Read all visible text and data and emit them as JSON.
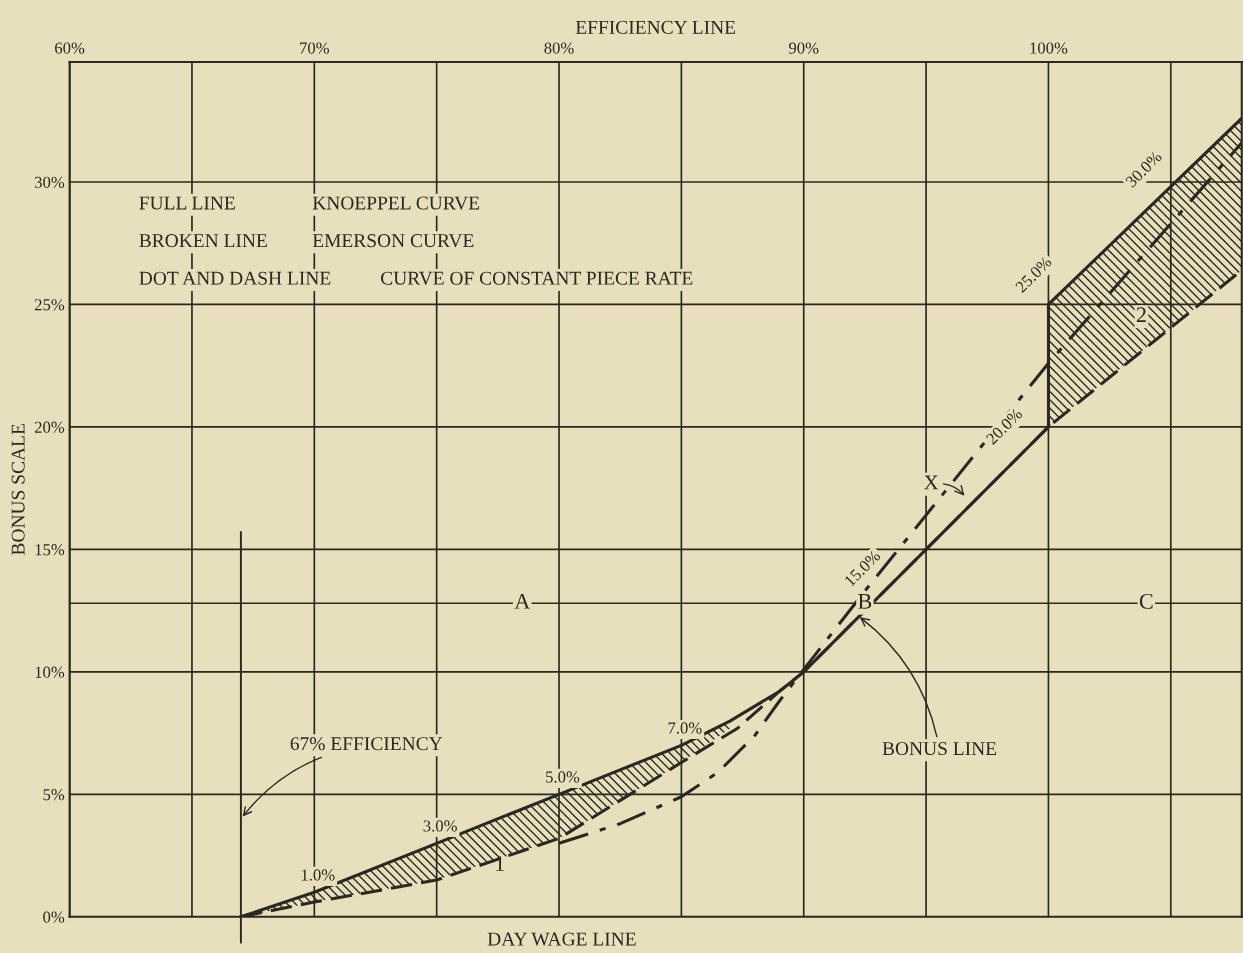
{
  "chart_data": {
    "type": "line",
    "xlabel": "EFFICIENCY LINE",
    "ylabel": "BONUS SCALE",
    "xlim": [
      60,
      107.9
    ],
    "ylim": [
      0,
      34.9
    ],
    "xticks": [
      {
        "value": 60,
        "label": "60%"
      },
      {
        "value": 65,
        "label": null
      },
      {
        "value": 70,
        "label": "70%"
      },
      {
        "value": 75,
        "label": null
      },
      {
        "value": 80,
        "label": "80%"
      },
      {
        "value": 85,
        "label": null
      },
      {
        "value": 90,
        "label": "90%"
      },
      {
        "value": 95,
        "label": null
      },
      {
        "value": 100,
        "label": "100%"
      },
      {
        "value": 105,
        "label": null
      }
    ],
    "yticks": [
      {
        "value": 0,
        "label": "0%"
      },
      {
        "value": 5,
        "label": "5%"
      },
      {
        "value": 10,
        "label": "10%"
      },
      {
        "value": 15,
        "label": "15%"
      },
      {
        "value": 20,
        "label": "20%"
      },
      {
        "value": 25,
        "label": "25%"
      },
      {
        "value": 30,
        "label": "30%"
      }
    ],
    "grid": true,
    "legend": false,
    "marker": "none",
    "series": [
      {
        "color": "#2a2820",
        "line_style": "solid",
        "x": [
          67,
          70,
          75,
          80,
          85,
          87,
          89,
          90,
          95,
          100,
          100,
          107.9
        ],
        "values": [
          0,
          1.0,
          3.0,
          5.0,
          7.0,
          8.0,
          9.2,
          10.0,
          15.0,
          20.0,
          25.0,
          32.6
        ],
        "lower": [
          0,
          0.6,
          1.5,
          3.2,
          6.3,
          7.7,
          null,
          null,
          null,
          20.0,
          20.0,
          26.4
        ],
        "upper": [
          0,
          1.0,
          3.0,
          5.0,
          7.0,
          8.0,
          null,
          null,
          null,
          20.0,
          25.0,
          32.6
        ]
      },
      {
        "color": "#2a2820",
        "line_style": "dashed",
        "x": [
          67,
          70,
          75,
          80,
          85,
          87.3,
          89,
          90,
          100,
          107.9
        ],
        "values": [
          0,
          0.6,
          1.5,
          3.2,
          6.3,
          7.7,
          9.2,
          10.0,
          20.0,
          26.4
        ]
      },
      {
        "color": "#2a2820",
        "line_style": "dashdot",
        "x": [
          80,
          82.5,
          85,
          86.5,
          88,
          89,
          90,
          92.5,
          95,
          100,
          107.9
        ],
        "values": [
          3.0,
          3.8,
          4.9,
          5.9,
          7.4,
          8.8,
          10.1,
          13.3,
          16.4,
          22.6,
          31.6
        ]
      }
    ],
    "ref_lines": [
      {
        "axis": "x",
        "value": 67,
        "label": null
      },
      {
        "axis": "y",
        "value": 12.8,
        "label": null
      }
    ],
    "annotations": [
      "FULL LINE",
      "KNOEPPEL CURVE",
      "BROKEN LINE",
      "EMERSON CURVE",
      "DOT AND DASH LINE",
      "CURVE OF CONSTANT PIECE RATE",
      "DAY WAGE LINE",
      {
        "text": "1.0%",
        "x": 70,
        "y": 1.0
      },
      {
        "text": "3.0%",
        "x": 75,
        "y": 3.0
      },
      {
        "text": "5.0%",
        "x": 80,
        "y": 5.0
      },
      {
        "text": "7.0%",
        "x": 85,
        "y": 7.0
      },
      {
        "text": "15.0%",
        "x": 93,
        "y": 13.0
      },
      {
        "text": "20.0%",
        "x": 98.8,
        "y": 18.8
      },
      {
        "text": "25.0%",
        "x": 100,
        "y": 25.0
      },
      {
        "text": "30.0%",
        "x": 104.5,
        "y": 29.3
      },
      {
        "text": "67% EFFICIENCY",
        "x": 67,
        "y": 4.0
      },
      {
        "text": "BONUS LINE",
        "x": 92.2,
        "y": 12.3
      },
      "X",
      "1",
      {
        "text": "2",
        "x": 103.8,
        "y": 24.5
      },
      {
        "text": "A",
        "x": 78.5,
        "y": 12.8
      },
      {
        "text": "B",
        "x": 92.5,
        "y": 12.8
      },
      {
        "text": "C",
        "x": 104,
        "y": 12.8
      }
    ]
  }
}
